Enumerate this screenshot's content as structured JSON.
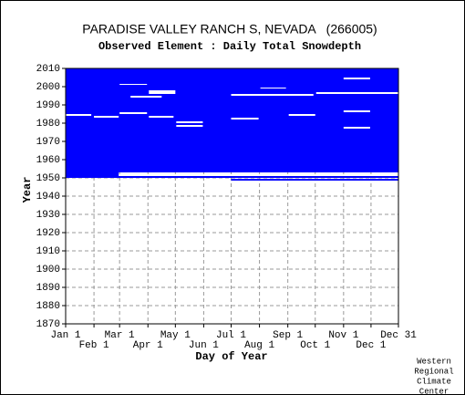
{
  "chart_data": {
    "type": "coverage",
    "title": "PARADISE VALLEY RANCH S, NEVADA   (266005)",
    "subtitle": "Observed Element : Daily Total Snowdepth",
    "xlabel": "Day of Year",
    "ylabel": "Year",
    "credit": [
      "Western",
      "Regional",
      "Climate",
      "Center"
    ],
    "xlim": [
      1,
      365
    ],
    "ylim": [
      1870,
      2010
    ],
    "xticks": [
      {
        "value": 1,
        "label": "Jan 1"
      },
      {
        "value": 32,
        "label": "Feb 1"
      },
      {
        "value": 60,
        "label": "Mar 1"
      },
      {
        "value": 91,
        "label": "Apr 1"
      },
      {
        "value": 121,
        "label": "May 1"
      },
      {
        "value": 152,
        "label": "Jun 1"
      },
      {
        "value": 182,
        "label": "Jul 1"
      },
      {
        "value": 213,
        "label": "Aug 1"
      },
      {
        "value": 244,
        "label": "Sep 1"
      },
      {
        "value": 274,
        "label": "Oct 1"
      },
      {
        "value": 305,
        "label": "Nov 1"
      },
      {
        "value": 335,
        "label": "Dec 1"
      },
      {
        "value": 365,
        "label": "Dec 31"
      }
    ],
    "yticks": [
      1870,
      1880,
      1890,
      1900,
      1910,
      1920,
      1930,
      1940,
      1950,
      1960,
      1970,
      1980,
      1990,
      2000,
      2010
    ],
    "grid": true,
    "observed_color": "#0000ff",
    "missing_color": "#ffffff",
    "observed": [
      {
        "years": [
          1953,
          2010
        ],
        "days": [
          1,
          365
        ]
      },
      {
        "years": [
          1951,
          1953
        ],
        "days": [
          1,
          59
        ]
      },
      {
        "years": [
          1950,
          1951
        ],
        "days": [
          1,
          365
        ]
      },
      {
        "years": [
          1948.5,
          1949.5
        ],
        "days": [
          182,
          365
        ]
      }
    ],
    "missing": [
      {
        "years": [
          1984,
          1985
        ],
        "days": [
          1,
          29
        ]
      },
      {
        "years": [
          1983,
          1984
        ],
        "days": [
          32,
          59
        ]
      },
      {
        "years": [
          1985,
          1986
        ],
        "days": [
          60,
          90
        ]
      },
      {
        "years": [
          2001,
          2001.5
        ],
        "days": [
          60,
          90
        ]
      },
      {
        "years": [
          1996,
          1998
        ],
        "days": [
          92,
          121
        ]
      },
      {
        "years": [
          1994,
          1995
        ],
        "days": [
          72,
          106
        ]
      },
      {
        "years": [
          1983,
          1984
        ],
        "days": [
          92,
          119
        ]
      },
      {
        "years": [
          1980,
          1981
        ],
        "days": [
          122,
          151
        ]
      },
      {
        "years": [
          1978,
          1979
        ],
        "days": [
          122,
          151
        ]
      },
      {
        "years": [
          1995,
          1996
        ],
        "days": [
          182,
          272
        ]
      },
      {
        "years": [
          1999,
          1999.5
        ],
        "days": [
          214,
          242
        ]
      },
      {
        "years": [
          1982,
          1983
        ],
        "days": [
          182,
          212
        ]
      },
      {
        "years": [
          1984,
          1985
        ],
        "days": [
          245,
          274
        ]
      },
      {
        "years": [
          1996,
          1997
        ],
        "days": [
          275,
          365
        ]
      },
      {
        "years": [
          1986,
          1987
        ],
        "days": [
          305,
          334
        ]
      },
      {
        "years": [
          1977,
          1978
        ],
        "days": [
          305,
          334
        ]
      },
      {
        "years": [
          2004,
          2005
        ],
        "days": [
          305,
          334
        ]
      }
    ]
  }
}
